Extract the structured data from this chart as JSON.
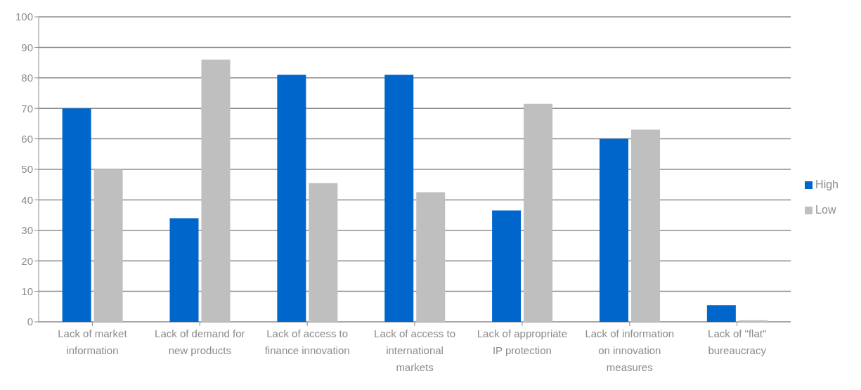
{
  "chart_data": {
    "type": "bar",
    "categories": [
      "Lack of market information",
      "Lack of demand for new products",
      "Lack of access to finance innovation",
      "Lack of access to international markets",
      "Lack of appropriate IP protection",
      "Lack of information on innovation measures",
      "Lack of \"flat\" bureaucracy"
    ],
    "series": [
      {
        "name": "High",
        "color": "#0066cc",
        "values": [
          70,
          34,
          81,
          81,
          36.5,
          60,
          5.5
        ]
      },
      {
        "name": "Low",
        "color": "#bfbfbf",
        "values": [
          50,
          86,
          45.5,
          42.5,
          71.5,
          63,
          0.5
        ]
      }
    ],
    "ylim": [
      0,
      100
    ],
    "yticks": [
      0,
      10,
      20,
      30,
      40,
      50,
      60,
      70,
      80,
      90,
      100
    ],
    "grid": "y",
    "legend": "right"
  }
}
